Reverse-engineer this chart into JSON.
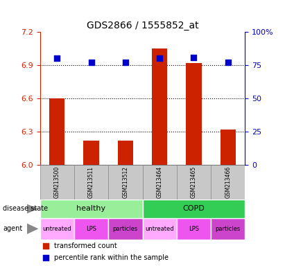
{
  "title": "GDS2866 / 1555852_at",
  "samples": [
    "GSM213500",
    "GSM213511",
    "GSM213512",
    "GSM213464",
    "GSM213465",
    "GSM213466"
  ],
  "red_values": [
    6.6,
    6.22,
    6.22,
    7.05,
    6.92,
    6.32
  ],
  "blue_pct": [
    80,
    77,
    77,
    80,
    81,
    77
  ],
  "ylim_left": [
    6.0,
    7.2
  ],
  "yticks_left": [
    6.0,
    6.3,
    6.6,
    6.9,
    7.2
  ],
  "yticks_right": [
    0,
    25,
    50,
    75,
    100
  ],
  "disease_state": [
    {
      "label": "healthy",
      "span": [
        0,
        3
      ],
      "color": "#99EE99"
    },
    {
      "label": "COPD",
      "span": [
        3,
        6
      ],
      "color": "#33CC55"
    }
  ],
  "agent": [
    {
      "label": "untreated",
      "span": [
        0,
        1
      ],
      "color": "#FFAAFF"
    },
    {
      "label": "LPS",
      "span": [
        1,
        2
      ],
      "color": "#EE55EE"
    },
    {
      "label": "particles",
      "span": [
        2,
        3
      ],
      "color": "#CC44CC"
    },
    {
      "label": "untreated",
      "span": [
        3,
        4
      ],
      "color": "#FFAAFF"
    },
    {
      "label": "LPS",
      "span": [
        4,
        5
      ],
      "color": "#EE55EE"
    },
    {
      "label": "particles",
      "span": [
        5,
        6
      ],
      "color": "#CC44CC"
    }
  ],
  "bar_color": "#CC2200",
  "dot_color": "#0000CC",
  "axis_color_left": "#CC2200",
  "axis_color_right": "#0000CC",
  "bar_width": 0.45,
  "dot_size": 35,
  "base_value": 6.0,
  "grid_dotted_at": [
    6.3,
    6.6,
    6.9
  ],
  "sample_box_color": "#C8C8C8",
  "sample_box_edge": "#888888"
}
